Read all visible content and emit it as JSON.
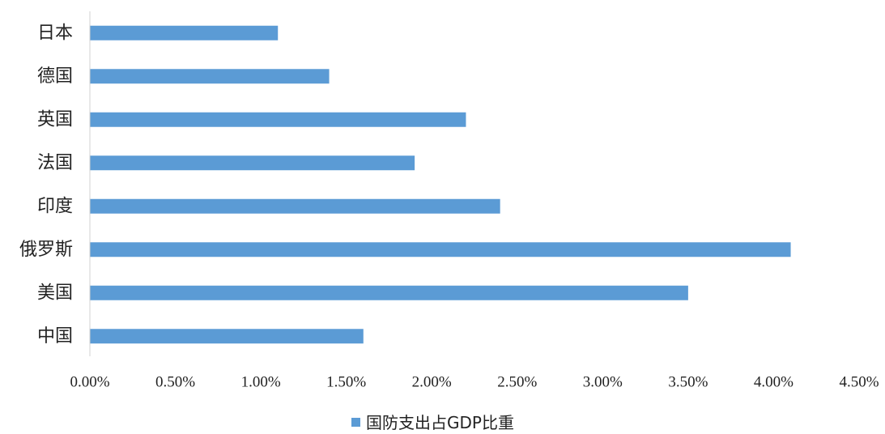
{
  "chart_data": {
    "type": "bar",
    "orientation": "horizontal",
    "categories": [
      "日本",
      "德国",
      "英国",
      "法国",
      "印度",
      "俄罗斯",
      "美国",
      "中国"
    ],
    "series": [
      {
        "name": "国防支出占GDP比重",
        "color": "#5b9bd5",
        "values": [
          1.1,
          1.4,
          2.2,
          1.9,
          2.4,
          4.1,
          3.5,
          1.6
        ]
      }
    ],
    "xlim": [
      0,
      4.5
    ],
    "xticks": [
      0,
      0.5,
      1.0,
      1.5,
      2.0,
      2.5,
      3.0,
      3.5,
      4.0,
      4.5
    ],
    "xtick_labels": [
      "0.00%",
      "0.50%",
      "1.00%",
      "1.50%",
      "2.00%",
      "2.50%",
      "3.00%",
      "3.50%",
      "4.00%",
      "4.50%"
    ],
    "title": "",
    "xlabel": "",
    "ylabel": "",
    "grid": false,
    "legend_position": "bottom"
  }
}
